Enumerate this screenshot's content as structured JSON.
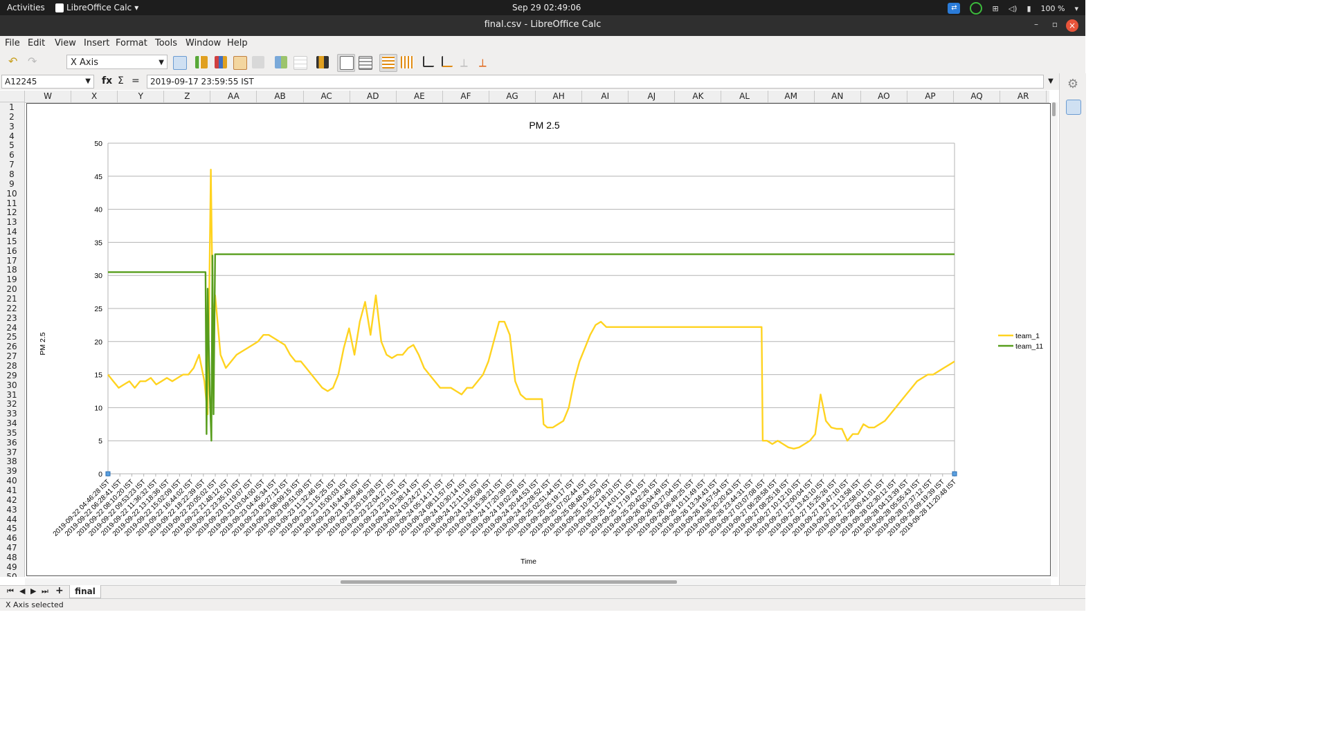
{
  "topbar": {
    "activities": "Activities",
    "app_name": "LibreOffice Calc",
    "clock": "Sep 29  02:49:06",
    "battery": "100 %"
  },
  "window": {
    "title": "final.csv - LibreOffice Calc"
  },
  "menu": [
    "File",
    "Edit",
    "View",
    "Insert",
    "Format",
    "Tools",
    "Window",
    "Help"
  ],
  "toolbar": {
    "element_select_value": "X Axis"
  },
  "formula_bar": {
    "name_box": "A12245",
    "fx_label": "fx",
    "sum_label": "Σ",
    "equals_label": "=",
    "content": "2019-09-17 23:59:55 IST"
  },
  "columns": [
    "W",
    "X",
    "Y",
    "Z",
    "AA",
    "AB",
    "AC",
    "AD",
    "AE",
    "AF",
    "AG",
    "AH",
    "AI",
    "AJ",
    "AK",
    "AL",
    "AM",
    "AN",
    "AO",
    "AP",
    "AQ",
    "AR"
  ],
  "rows": [
    "1",
    "2",
    "3",
    "4",
    "5",
    "6",
    "7",
    "8",
    "9",
    "10",
    "11",
    "12",
    "13",
    "14",
    "15",
    "16",
    "17",
    "18",
    "19",
    "20",
    "21",
    "22",
    "23",
    "24",
    "25",
    "26",
    "27",
    "28",
    "29",
    "30",
    "31",
    "32",
    "33",
    "34",
    "35",
    "36",
    "37",
    "38",
    "39",
    "40",
    "41",
    "42",
    "43",
    "44",
    "45",
    "46",
    "47",
    "48",
    "49",
    "50"
  ],
  "sheet": {
    "tab_name": "final",
    "add_label": "+"
  },
  "status": {
    "text": "X Axis selected"
  },
  "chart_data": {
    "type": "line",
    "title": "PM 2.5",
    "xlabel": "Time",
    "ylabel": "PM 2.5",
    "ylim": [
      0,
      50
    ],
    "yticks": [
      0,
      5,
      10,
      15,
      20,
      25,
      30,
      35,
      40,
      45,
      50
    ],
    "grid": true,
    "legend": "right",
    "x_tick_labels": [
      "2019-09-22 04:46:28 IST",
      "2019-09-22 06:28:41 IST",
      "2019-09-22 08:10:20 IST",
      "2019-09-22 09:53:23 IST",
      "2019-09-22 11:36:32 IST",
      "2019-09-22 13:18:36 IST",
      "2019-09-22 15:02:09 IST",
      "2019-09-22 16:44:02 IST",
      "2019-09-22 18:22:39 IST",
      "2019-09-22 20:05:02 IST",
      "2019-09-22 21:48:12 IST",
      "2019-09-22 23:35:10 IST",
      "2019-09-23 01:19:07 IST",
      "2019-09-23 03:04:00 IST",
      "2019-09-23 04:45:34 IST",
      "2019-09-23 06:27:12 IST",
      "2019-09-23 08:09:15 IST",
      "2019-09-23 09:51:09 IST",
      "2019-09-23 11:32:46 IST",
      "2019-09-23 13:15:25 IST",
      "2019-09-23 15:00:03 IST",
      "2019-09-23 16:44:45 IST",
      "2019-09-23 18:29:46 IST",
      "2019-09-23 20:19:28 IST",
      "2019-09-23 22:04:27 IST",
      "2019-09-23 23:51:51 IST",
      "2019-09-24 01:38:14 IST",
      "2019-09-24 03:24:27 IST",
      "2019-09-24 05:14:17 IST",
      "2019-09-24 08:11:57 IST",
      "2019-09-24 10:30:14 IST",
      "2019-09-24 12:11:19 IST",
      "2019-09-24 13:55:08 IST",
      "2019-09-24 15:38:21 IST",
      "2019-09-24 17:20:39 IST",
      "2019-09-24 19:02:28 IST",
      "2019-09-24 20:44:53 IST",
      "2019-09-24 23:28:52 IST",
      "2019-09-25 02:51:44 IST",
      "2019-09-25 05:19:17 IST",
      "2019-09-25 07:02:44 IST",
      "2019-09-25 08:48:43 IST",
      "2019-09-25 10:35:29 IST",
      "2019-09-25 12:18:10 IST",
      "2019-09-25 14:01:11 IST",
      "2019-09-25 17:19:43 IST",
      "2019-09-25 20:42:26 IST",
      "2019-09-26 00:04:49 IST",
      "2019-09-26 03:27:04 IST",
      "2019-09-26 06:49:25 IST",
      "2019-09-26 10:11:49 IST",
      "2019-09-26 13:34:43 IST",
      "2019-09-26 16:57:54 IST",
      "2019-09-26 20:20:43 IST",
      "2019-09-26 23:44:31 IST",
      "2019-09-27 03:07:08 IST",
      "2019-09-27 06:28:58 IST",
      "2019-09-27 08:25:18 IST",
      "2019-09-27 10:12:10 IST",
      "2019-09-27 12:00:04 IST",
      "2019-09-27 13:43:10 IST",
      "2019-09-27 15:25:26 IST",
      "2019-09-27 18:47:10 IST",
      "2019-09-27 21:13:58 IST",
      "2019-09-27 22:58:01 IST",
      "2019-09-28 00:41:01 IST",
      "2019-09-28 02:30:12 IST",
      "2019-09-28 04:13:39 IST",
      "2019-09-28 05:55:43 IST",
      "2019-09-28 07:37:12 IST",
      "2019-09-28 09:19:39 IST",
      "2019-09-28 11:20:48 IST"
    ],
    "series": [
      {
        "name": "team_1",
        "color": "#ffd320",
        "points": [
          [
            0,
            15
          ],
          [
            1,
            14
          ],
          [
            2,
            13
          ],
          [
            3,
            13.5
          ],
          [
            4,
            14
          ],
          [
            5,
            13
          ],
          [
            6,
            14
          ],
          [
            7,
            14
          ],
          [
            8,
            14.5
          ],
          [
            9,
            13.5
          ],
          [
            10,
            14
          ],
          [
            11,
            14.5
          ],
          [
            12,
            14
          ],
          [
            13,
            14.5
          ],
          [
            14,
            15
          ],
          [
            15,
            15
          ],
          [
            16,
            16
          ],
          [
            17,
            18
          ],
          [
            18,
            14
          ],
          [
            18.6,
            9
          ],
          [
            19.2,
            46
          ],
          [
            19.6,
            22
          ],
          [
            20,
            27
          ],
          [
            21,
            18
          ],
          [
            22,
            16
          ],
          [
            23,
            17
          ],
          [
            24,
            18
          ],
          [
            25,
            18.5
          ],
          [
            26,
            19
          ],
          [
            27,
            19.5
          ],
          [
            28,
            20
          ],
          [
            29,
            21
          ],
          [
            30,
            21
          ],
          [
            31,
            20.5
          ],
          [
            32,
            20
          ],
          [
            33,
            19.5
          ],
          [
            34,
            18
          ],
          [
            35,
            17
          ],
          [
            36,
            17
          ],
          [
            37,
            16
          ],
          [
            38,
            15
          ],
          [
            39,
            14
          ],
          [
            40,
            13
          ],
          [
            41,
            12.5
          ],
          [
            42,
            13
          ],
          [
            43,
            15
          ],
          [
            44,
            19
          ],
          [
            45,
            22
          ],
          [
            46,
            18
          ],
          [
            47,
            23
          ],
          [
            48,
            26
          ],
          [
            49,
            21
          ],
          [
            50,
            27
          ],
          [
            51,
            20
          ],
          [
            52,
            18
          ],
          [
            53,
            17.5
          ],
          [
            54,
            18
          ],
          [
            55,
            18
          ],
          [
            56,
            19
          ],
          [
            57,
            19.5
          ],
          [
            58,
            18
          ],
          [
            59,
            16
          ],
          [
            60,
            15
          ],
          [
            61,
            14
          ],
          [
            62,
            13
          ],
          [
            63,
            13
          ],
          [
            64,
            13
          ],
          [
            65,
            12.5
          ],
          [
            66,
            12
          ],
          [
            67,
            13
          ],
          [
            68,
            13
          ],
          [
            69,
            14
          ],
          [
            70,
            15
          ],
          [
            71,
            17
          ],
          [
            72,
            20
          ],
          [
            73,
            23
          ],
          [
            74,
            23
          ],
          [
            75,
            21
          ],
          [
            76,
            14
          ],
          [
            77,
            12
          ],
          [
            78,
            11.3
          ],
          [
            80,
            11.3
          ],
          [
            81,
            11.3
          ],
          [
            81.3,
            7.5
          ],
          [
            82,
            7
          ],
          [
            83,
            7
          ],
          [
            84,
            7.5
          ],
          [
            85,
            8
          ],
          [
            86,
            10
          ],
          [
            87,
            14
          ],
          [
            88,
            17
          ],
          [
            89,
            19
          ],
          [
            90,
            21
          ],
          [
            91,
            22.5
          ],
          [
            92,
            23
          ],
          [
            93,
            22.2
          ],
          [
            120,
            22.2
          ],
          [
            122,
            22.2
          ],
          [
            122.2,
            5
          ],
          [
            123,
            5
          ],
          [
            124,
            4.5
          ],
          [
            125,
            5
          ],
          [
            126,
            4.5
          ],
          [
            127,
            4
          ],
          [
            128,
            3.8
          ],
          [
            129,
            4
          ],
          [
            130,
            4.5
          ],
          [
            131,
            5
          ],
          [
            132,
            6
          ],
          [
            133,
            12
          ],
          [
            134,
            8
          ],
          [
            135,
            7
          ],
          [
            136,
            6.8
          ],
          [
            137,
            6.8
          ],
          [
            138,
            5
          ],
          [
            139,
            6
          ],
          [
            140,
            6
          ],
          [
            141,
            7.5
          ],
          [
            142,
            7
          ],
          [
            143,
            7
          ],
          [
            144,
            7.5
          ],
          [
            145,
            8
          ],
          [
            146,
            9
          ],
          [
            147,
            10
          ],
          [
            148,
            11
          ],
          [
            149,
            12
          ],
          [
            150,
            13
          ],
          [
            151,
            14
          ],
          [
            152,
            14.5
          ],
          [
            153,
            15
          ],
          [
            154,
            15
          ],
          [
            155,
            15.5
          ],
          [
            156,
            16
          ],
          [
            157,
            16.5
          ],
          [
            158,
            17
          ]
        ]
      },
      {
        "name": "team_11",
        "color": "#579d1c",
        "points": [
          [
            0,
            30.5
          ],
          [
            18.2,
            30.5
          ],
          [
            18.4,
            6
          ],
          [
            18.6,
            28
          ],
          [
            19,
            12
          ],
          [
            19.3,
            5
          ],
          [
            19.5,
            33
          ],
          [
            19.7,
            9
          ],
          [
            20,
            33.2
          ],
          [
            158,
            33.2
          ]
        ]
      }
    ]
  }
}
